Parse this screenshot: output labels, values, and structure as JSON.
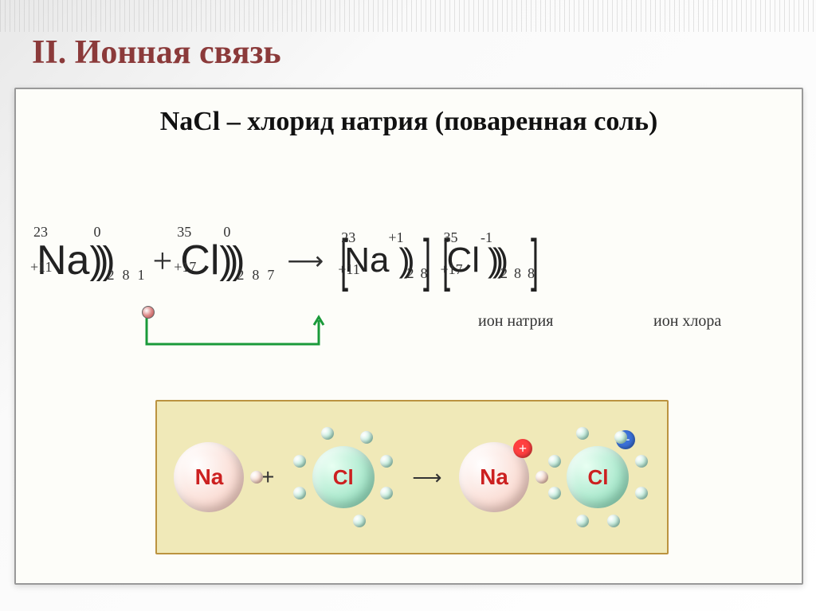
{
  "title": "II. Ионная связь",
  "subtitle": "NaCl – хлорид натрия (поваренная соль)",
  "atoms": {
    "na": {
      "sym": "Na",
      "mass": "23",
      "prot": "+11",
      "charge": "0",
      "shells": [
        "2",
        "8",
        "1"
      ]
    },
    "cl": {
      "sym": "Cl",
      "mass": "35",
      "prot": "+17",
      "charge": "0",
      "shells": [
        "2",
        "8",
        "7"
      ]
    },
    "na_ion": {
      "sym": "Na",
      "mass": "23",
      "prot": "+11",
      "charge": "+1",
      "shells": [
        "2",
        "8"
      ],
      "label": "ион натрия"
    },
    "cl_ion": {
      "sym": "Cl",
      "mass": "35",
      "prot": "+17",
      "charge": "-1",
      "shells": [
        "2",
        "8",
        "8"
      ],
      "label": "ион хлора"
    }
  },
  "ops": {
    "plus": "+",
    "arrow": "⟶"
  },
  "colors": {
    "na_ball_bg": "#f7c6b8",
    "na_ball_text": "#cc2020",
    "cl_ball_bg": "#7fd9b3",
    "cl_ball_text": "#cc2020",
    "electron": "#8fe0c0",
    "electron_loose": "#f0b49c",
    "plus_sign_bg": "#ff4040",
    "plus_sign_text": "#ffffff",
    "minus_sign_bg": "#3a70d8",
    "minus_sign_text": "#ffffff",
    "transfer_line": "#1a9a3a",
    "box_bg": "#f0e9b8",
    "box_border": "#bb9340",
    "title_color": "#8B3A3A"
  },
  "styling": {
    "title_fontsize": 42,
    "subtitle_fontsize": 34,
    "atom_sym_fontsize": 52,
    "superscript_fontsize": 18,
    "label_fontsize": 20,
    "na_ball_diameter": 88,
    "cl_ball_diameter": 78,
    "electron_diameter": 16,
    "sign_diameter": 24,
    "shell_paren_fontsize": 48,
    "shell_num_fontsize": 18
  },
  "bohr": {
    "plus": "+",
    "arrow": "⟶",
    "plus_sign": "+",
    "minus_sign": "−",
    "cl_electron_angles": [
      20,
      70,
      160,
      200,
      250,
      300,
      340
    ],
    "cl_ion_electron_angles": [
      20,
      70,
      110,
      160,
      200,
      250,
      300,
      340
    ],
    "orbit_radius": 58
  }
}
